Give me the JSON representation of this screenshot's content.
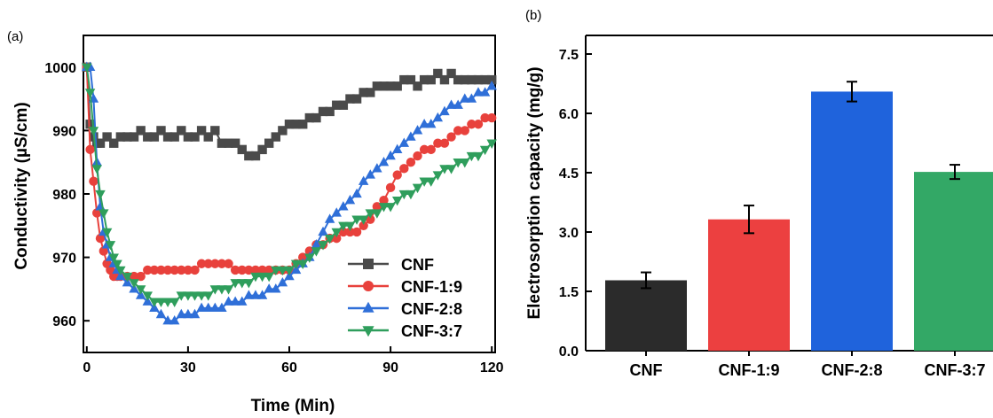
{
  "figure": {
    "panel_a": "(a)",
    "panel_b": "(b)"
  },
  "chart_data": [
    {
      "type": "line",
      "xlabel": "Time (Min)",
      "ylabel": "Conductivity (µS/cm)",
      "xlim": [
        -1,
        121
      ],
      "ylim": [
        955,
        1005
      ],
      "xticks": [
        0,
        30,
        60,
        90,
        120
      ],
      "yticks": [
        960,
        970,
        980,
        990,
        1000
      ],
      "grid": false,
      "legend_position": "bottom-right",
      "series": [
        {
          "name": "CNF",
          "color": "#4a4a4a",
          "marker": "square",
          "x": [
            0,
            1,
            2,
            3,
            4,
            6,
            8,
            10,
            12,
            14,
            16,
            18,
            20,
            22,
            24,
            26,
            28,
            30,
            32,
            34,
            36,
            38,
            40,
            42,
            44,
            46,
            48,
            50,
            52,
            54,
            56,
            58,
            60,
            62,
            64,
            66,
            68,
            70,
            72,
            74,
            76,
            78,
            80,
            82,
            84,
            86,
            88,
            90,
            92,
            94,
            96,
            98,
            100,
            102,
            104,
            106,
            108,
            110,
            112,
            114,
            116,
            118,
            120
          ],
          "y": [
            1000,
            991,
            989,
            988,
            988,
            989,
            988,
            989,
            989,
            989,
            990,
            989,
            989,
            990,
            989,
            989,
            990,
            989,
            989,
            990,
            989,
            990,
            988,
            988,
            988,
            987,
            986,
            986,
            987,
            988,
            989,
            990,
            991,
            991,
            991,
            992,
            992,
            993,
            993,
            994,
            994,
            995,
            995,
            996,
            996,
            997,
            997,
            997,
            997,
            998,
            998,
            997,
            998,
            998,
            999,
            998,
            999,
            998,
            998,
            998,
            998,
            998,
            998
          ]
        },
        {
          "name": "CNF-1:9",
          "color": "#e8413c",
          "marker": "circle",
          "x": [
            0,
            1,
            2,
            3,
            4,
            5,
            6,
            7,
            8,
            9,
            10,
            12,
            14,
            16,
            18,
            20,
            22,
            24,
            26,
            28,
            30,
            32,
            34,
            36,
            38,
            40,
            42,
            44,
            46,
            48,
            50,
            52,
            54,
            56,
            58,
            60,
            62,
            64,
            66,
            68,
            70,
            72,
            74,
            76,
            78,
            80,
            82,
            84,
            86,
            88,
            90,
            92,
            94,
            96,
            98,
            100,
            102,
            104,
            106,
            108,
            110,
            112,
            114,
            116,
            118,
            120
          ],
          "y": [
            1000,
            987,
            982,
            977,
            973,
            971,
            969,
            968,
            967,
            967,
            967,
            967,
            967,
            967,
            968,
            968,
            968,
            968,
            968,
            968,
            968,
            968,
            969,
            969,
            969,
            969,
            969,
            968,
            968,
            968,
            968,
            968,
            968,
            968,
            968,
            968,
            969,
            970,
            971,
            972,
            972,
            973,
            973,
            974,
            974,
            974,
            975,
            976,
            978,
            979,
            981,
            983,
            984,
            985,
            986,
            987,
            987,
            988,
            988,
            989,
            990,
            990,
            991,
            991,
            992,
            992
          ]
        },
        {
          "name": "CNF-2:8",
          "color": "#2f6fd8",
          "marker": "triangle-up",
          "x": [
            0,
            1,
            2,
            3,
            4,
            5,
            6,
            7,
            8,
            9,
            10,
            12,
            14,
            16,
            18,
            20,
            22,
            24,
            26,
            28,
            30,
            32,
            34,
            36,
            38,
            40,
            42,
            44,
            46,
            48,
            50,
            52,
            54,
            56,
            58,
            60,
            62,
            64,
            66,
            68,
            70,
            72,
            74,
            76,
            78,
            80,
            82,
            84,
            86,
            88,
            90,
            92,
            94,
            96,
            98,
            100,
            102,
            104,
            106,
            108,
            110,
            112,
            114,
            116,
            118,
            120
          ],
          "y": [
            1000,
            1000,
            995,
            985,
            978,
            974,
            972,
            970,
            969,
            968,
            967,
            966,
            965,
            964,
            963,
            962,
            961,
            960,
            960,
            961,
            961,
            961,
            962,
            962,
            962,
            962,
            963,
            963,
            963,
            964,
            964,
            964,
            965,
            965,
            966,
            967,
            968,
            969,
            970,
            972,
            974,
            976,
            977,
            978,
            979,
            980,
            982,
            983,
            984,
            985,
            986,
            987,
            988,
            989,
            990,
            991,
            991,
            992,
            993,
            994,
            994,
            995,
            995,
            996,
            996,
            997
          ]
        },
        {
          "name": "CNF-3:7",
          "color": "#2f9e5c",
          "marker": "triangle-down",
          "x": [
            0,
            1,
            2,
            3,
            4,
            5,
            6,
            7,
            8,
            9,
            10,
            12,
            14,
            16,
            18,
            20,
            22,
            24,
            26,
            28,
            30,
            32,
            34,
            36,
            38,
            40,
            42,
            44,
            46,
            48,
            50,
            52,
            54,
            56,
            58,
            60,
            62,
            64,
            66,
            68,
            70,
            72,
            74,
            76,
            78,
            80,
            82,
            84,
            86,
            88,
            90,
            92,
            94,
            96,
            98,
            100,
            102,
            104,
            106,
            108,
            110,
            112,
            114,
            116,
            118,
            120
          ],
          "y": [
            1000,
            996,
            990,
            984,
            980,
            977,
            974,
            972,
            970,
            969,
            968,
            967,
            966,
            965,
            964,
            963,
            963,
            963,
            963,
            964,
            964,
            964,
            964,
            964,
            965,
            965,
            965,
            966,
            966,
            966,
            967,
            967,
            967,
            968,
            968,
            968,
            969,
            969,
            970,
            971,
            972,
            973,
            974,
            975,
            975,
            976,
            976,
            977,
            977,
            978,
            978,
            979,
            980,
            980,
            981,
            982,
            982,
            983,
            984,
            984,
            985,
            985,
            986,
            986,
            987,
            988
          ]
        }
      ]
    },
    {
      "type": "bar",
      "ylabel": "Electrosorption capacity (mg/g)",
      "ylim": [
        0,
        7.5
      ],
      "yticks": [
        0.0,
        1.5,
        3.0,
        4.5,
        6.0,
        7.5
      ],
      "ytick_labels": [
        "0.0",
        "1.5",
        "3.0",
        "4.5",
        "6.0",
        "7.5"
      ],
      "grid": false,
      "categories": [
        "CNF",
        "CNF-1:9",
        "CNF-2:8",
        "CNF-3:7"
      ],
      "values": [
        1.78,
        3.32,
        6.55,
        4.52
      ],
      "errors": [
        0.2,
        0.35,
        0.25,
        0.18
      ],
      "colors": [
        "#2b2b2b",
        "#ec4040",
        "#1f63dc",
        "#33a866"
      ]
    }
  ]
}
